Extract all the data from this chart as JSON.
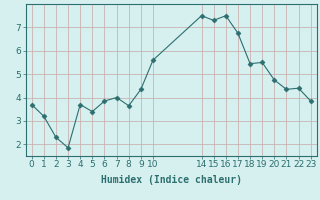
{
  "x": [
    0,
    1,
    2,
    3,
    4,
    5,
    6,
    7,
    8,
    9,
    10,
    14,
    15,
    16,
    17,
    18,
    19,
    20,
    21,
    22,
    23
  ],
  "y": [
    3.7,
    3.2,
    2.3,
    1.85,
    3.7,
    3.4,
    3.85,
    4.0,
    3.65,
    4.35,
    5.6,
    7.5,
    7.3,
    7.5,
    6.75,
    5.45,
    5.5,
    4.75,
    4.35,
    4.4,
    3.85
  ],
  "line_color": "#2d6e6e",
  "marker": "D",
  "marker_size": 2.5,
  "bg_color": "#d6f0f0",
  "grid_color_h": "#c8a8a8",
  "grid_color_v": "#c8a8a8",
  "xlabel": "Humidex (Indice chaleur)",
  "xlabel_fontsize": 7,
  "tick_fontsize": 6.5,
  "ylim": [
    1.5,
    8.0
  ],
  "yticks": [
    2,
    3,
    4,
    5,
    6,
    7
  ],
  "xticks": [
    0,
    1,
    2,
    3,
    4,
    5,
    6,
    7,
    8,
    9,
    10,
    14,
    15,
    16,
    17,
    18,
    19,
    20,
    21,
    22,
    23
  ],
  "xlim": [
    -0.5,
    23.5
  ]
}
